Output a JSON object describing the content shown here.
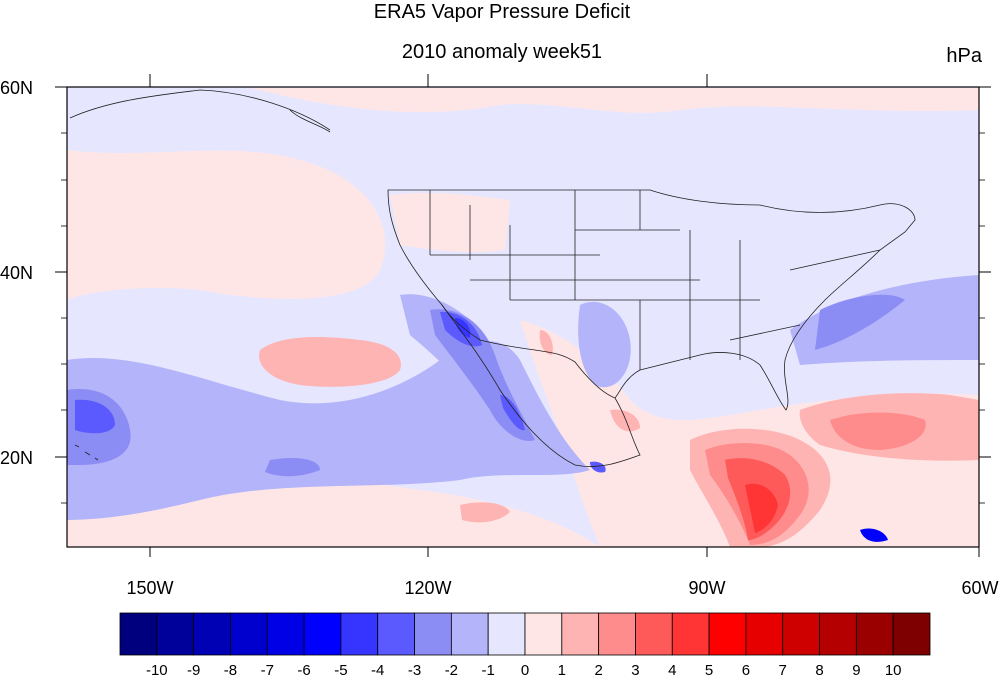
{
  "title": "ERA5 Vapor Pressure Deficit",
  "subtitle": "2010 anomaly week51",
  "units": "hPa",
  "map": {
    "region": "Contiguous United States, North Pacific and Gulf of Mexico",
    "lon_range": [
      -160,
      -60
    ],
    "lat_range": [
      10,
      60
    ],
    "x_tick_labels": [
      "150W",
      "120W",
      "90W",
      "60W"
    ],
    "y_tick_labels": [
      "60N",
      "40N",
      "20N"
    ],
    "grid": false,
    "features": [
      "coastlines",
      "US state boundaries",
      "filled contour anomaly field"
    ]
  },
  "colorbar": {
    "labels": [
      "-10",
      "-9",
      "-8",
      "-7",
      "-6",
      "-5",
      "-4",
      "-3",
      "-2",
      "-1",
      "0",
      "1",
      "2",
      "3",
      "4",
      "5",
      "6",
      "7",
      "8",
      "9",
      "10"
    ],
    "colors": [
      "#00007f",
      "#00009a",
      "#0000b4",
      "#0000ce",
      "#0000e6",
      "#0000ff",
      "#3535ff",
      "#5a5aff",
      "#8c8cf5",
      "#b4b4fa",
      "#e6e6ff",
      "#ffe6e6",
      "#ffb4b4",
      "#ff8c8c",
      "#ff5a5a",
      "#ff3535",
      "#ff0000",
      "#e60000",
      "#ce0000",
      "#b40000",
      "#9a0000",
      "#7f0000"
    ]
  }
}
